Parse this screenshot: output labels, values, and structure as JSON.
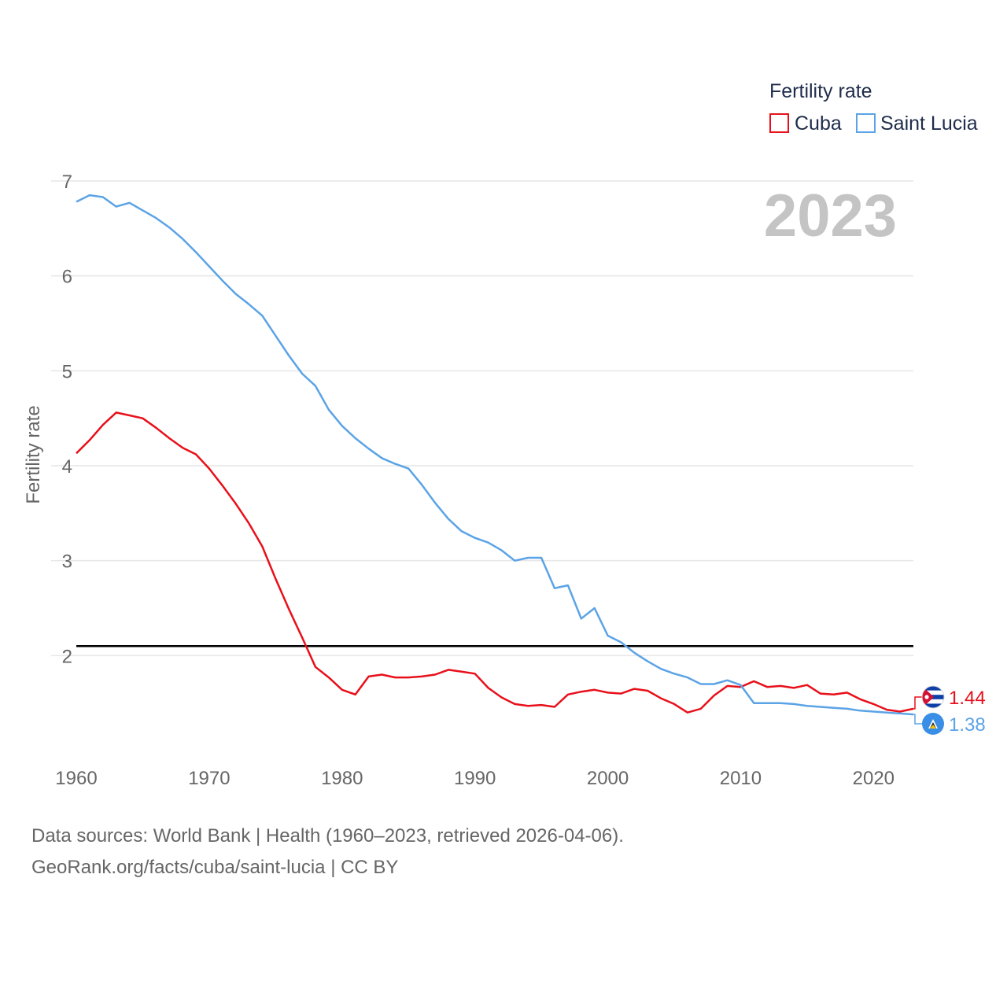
{
  "chart_data": {
    "type": "line",
    "title": "Fertility rate",
    "year_label": "2023",
    "ylabel": "Fertility rate",
    "xlabel": "",
    "xlim": [
      1960,
      2023
    ],
    "ylim": [
      1.0,
      7.0
    ],
    "x_ticks": [
      1960,
      1970,
      1980,
      1990,
      2000,
      2010,
      2020
    ],
    "y_ticks": [
      2,
      3,
      4,
      5,
      6,
      7
    ],
    "reference_line": 2.1,
    "grid": true,
    "legend_position": "top-right",
    "x": [
      1960,
      1961,
      1962,
      1963,
      1964,
      1965,
      1966,
      1967,
      1968,
      1969,
      1970,
      1971,
      1972,
      1973,
      1974,
      1975,
      1976,
      1977,
      1978,
      1979,
      1980,
      1981,
      1982,
      1983,
      1984,
      1985,
      1986,
      1987,
      1988,
      1989,
      1990,
      1991,
      1992,
      1993,
      1994,
      1995,
      1996,
      1997,
      1998,
      1999,
      2000,
      2001,
      2002,
      2003,
      2004,
      2005,
      2006,
      2007,
      2008,
      2009,
      2010,
      2011,
      2012,
      2013,
      2014,
      2015,
      2016,
      2017,
      2018,
      2019,
      2020,
      2021,
      2022,
      2023
    ],
    "series": [
      {
        "name": "Cuba",
        "color": "#e8101a",
        "end_label": "1.44",
        "flag": "cuba-flag",
        "values": [
          4.13,
          4.27,
          4.43,
          4.56,
          4.53,
          4.5,
          4.4,
          4.29,
          4.19,
          4.12,
          3.97,
          3.79,
          3.6,
          3.39,
          3.15,
          2.81,
          2.49,
          2.19,
          1.88,
          1.77,
          1.64,
          1.59,
          1.78,
          1.8,
          1.77,
          1.77,
          1.78,
          1.8,
          1.85,
          1.83,
          1.81,
          1.66,
          1.56,
          1.49,
          1.47,
          1.48,
          1.46,
          1.59,
          1.62,
          1.64,
          1.61,
          1.6,
          1.65,
          1.63,
          1.55,
          1.49,
          1.4,
          1.44,
          1.58,
          1.68,
          1.67,
          1.73,
          1.67,
          1.68,
          1.66,
          1.69,
          1.6,
          1.59,
          1.61,
          1.54,
          1.49,
          1.43,
          1.41,
          1.44
        ]
      },
      {
        "name": "Saint Lucia",
        "color": "#5ba3e6",
        "end_label": "1.38",
        "flag": "saint-lucia-flag",
        "values": [
          6.78,
          6.85,
          6.83,
          6.73,
          6.77,
          6.69,
          6.61,
          6.51,
          6.39,
          6.25,
          6.1,
          5.95,
          5.81,
          5.7,
          5.58,
          5.37,
          5.16,
          4.97,
          4.84,
          4.59,
          4.42,
          4.29,
          4.18,
          4.08,
          4.02,
          3.97,
          3.8,
          3.61,
          3.44,
          3.31,
          3.24,
          3.19,
          3.11,
          3.0,
          3.03,
          3.03,
          2.71,
          2.74,
          2.39,
          2.5,
          2.21,
          2.14,
          2.03,
          1.94,
          1.86,
          1.81,
          1.77,
          1.7,
          1.7,
          1.74,
          1.69,
          1.5,
          1.5,
          1.5,
          1.49,
          1.47,
          1.46,
          1.45,
          1.44,
          1.42,
          1.41,
          1.4,
          1.39,
          1.38
        ]
      }
    ]
  },
  "footer": {
    "line1": "Data sources: World Bank | Health (1960–2023, retrieved 2026-04-06).",
    "line2": "GeoRank.org/facts/cuba/saint-lucia | CC BY"
  }
}
